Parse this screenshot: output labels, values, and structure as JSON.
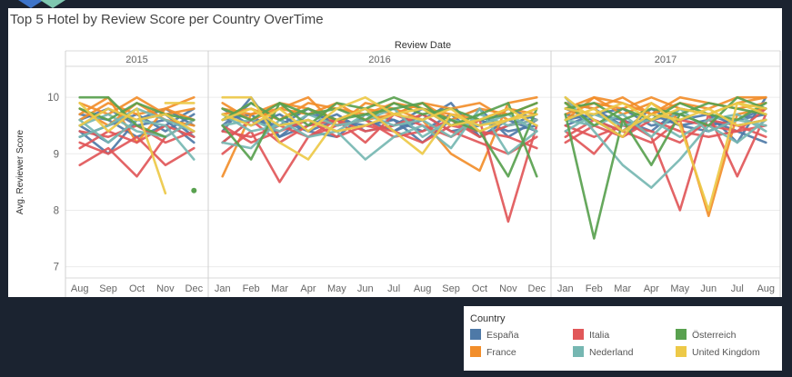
{
  "chart_data": {
    "type": "line",
    "title": "Top 5 Hotel by Review Score per Country OverTime",
    "header_label": "Review Date",
    "ylabel": "Avg. Reviewer Score",
    "ylim": [
      6.8,
      10.55
    ],
    "yticks": [
      7,
      8,
      9,
      10
    ],
    "grid": true,
    "legend_position": "bottom-right",
    "panels": [
      {
        "year": "2015",
        "months": [
          "Aug",
          "Sep",
          "Oct",
          "Nov",
          "Dec"
        ]
      },
      {
        "year": "2016",
        "months": [
          "Jan",
          "Feb",
          "Mar",
          "Apr",
          "May",
          "Jun",
          "Jul",
          "Aug",
          "Sep",
          "Oct",
          "Nov",
          "Dec"
        ]
      },
      {
        "year": "2017",
        "months": [
          "Jan",
          "Feb",
          "Mar",
          "Apr",
          "May",
          "Jun",
          "Jul",
          "Aug"
        ]
      }
    ],
    "legend_title": "Country",
    "series": [
      {
        "name": "España",
        "color": "#4e79a7",
        "lines": [
          {
            "p2015": [
              9.4,
              9.0,
              9.6,
              9.7,
              9.3
            ],
            "p2016": [
              9.4,
              10.0,
              9.3,
              9.7,
              9.6,
              9.8,
              9.4,
              9.6,
              9.9,
              9.3,
              9.5,
              9.7
            ],
            "p2017": [
              9.8,
              9.6,
              9.3,
              9.7,
              9.5,
              9.4,
              9.6,
              9.8
            ]
          },
          {
            "p2015": [
              9.6,
              9.8,
              9.5,
              9.6,
              9.2
            ],
            "p2016": [
              9.8,
              9.5,
              9.7,
              9.4,
              9.6,
              9.5,
              9.6,
              9.2,
              9.6,
              9.8,
              9.3,
              9.6
            ],
            "p2017": [
              9.6,
              9.7,
              9.8,
              9.5,
              9.6,
              9.7,
              9.2,
              10.0
            ]
          },
          {
            "p2015": [
              9.3,
              9.5,
              9.7,
              9.4,
              9.7
            ],
            "p2016": [
              9.6,
              9.7,
              9.3,
              9.5,
              9.7,
              9.4,
              9.5,
              9.8,
              9.5,
              9.6,
              9.4,
              9.5
            ],
            "p2017": [
              9.7,
              9.6,
              9.4,
              9.8,
              9.5,
              9.6,
              9.4,
              9.2
            ]
          },
          {
            "p2015": [
              9.7,
              9.6,
              9.3,
              9.5,
              9.8
            ],
            "p2016": [
              9.5,
              9.9,
              9.6,
              9.4,
              9.3,
              9.7,
              9.6,
              9.4,
              9.7,
              9.3,
              9.6,
              9.4
            ],
            "p2017": [
              9.9,
              9.8,
              9.5,
              9.6,
              9.7,
              9.5,
              9.6,
              9.7
            ]
          },
          {
            "p2015": [
              9.5,
              9.2,
              9.6,
              9.8,
              9.5
            ],
            "p2016": [
              9.2,
              9.6,
              9.5,
              9.8,
              9.5,
              9.6,
              9.4,
              9.7,
              9.4,
              9.5,
              9.8,
              9.6
            ],
            "p2017": [
              9.5,
              9.7,
              9.6,
              9.4,
              9.8,
              9.7,
              9.5,
              9.6
            ]
          }
        ]
      },
      {
        "name": "France",
        "color": "#f28e2b",
        "lines": [
          {
            "p2015": [
              9.7,
              10.0,
              9.2,
              9.8,
              10.0
            ],
            "p2016": [
              8.6,
              9.7,
              9.8,
              10.0,
              9.5,
              9.9,
              9.8,
              9.6,
              9.0,
              8.7,
              9.9,
              10.0
            ],
            "p2017": [
              9.6,
              10.0,
              9.7,
              9.9,
              9.6,
              7.9,
              9.7,
              9.8
            ]
          },
          {
            "p2015": [
              9.8,
              9.5,
              9.9,
              9.6,
              9.5
            ],
            "p2016": [
              9.9,
              9.6,
              9.8,
              9.7,
              9.9,
              9.6,
              9.7,
              9.9,
              9.6,
              9.8,
              9.7,
              9.9
            ],
            "p2017": [
              9.9,
              9.8,
              10.0,
              9.7,
              9.9,
              9.8,
              10.0,
              10.0
            ]
          },
          {
            "p2015": [
              9.6,
              9.9,
              9.7,
              9.8,
              9.6
            ],
            "p2016": [
              9.7,
              9.8,
              9.6,
              9.9,
              9.8,
              9.7,
              9.9,
              9.8,
              9.7,
              9.6,
              9.8,
              9.7
            ],
            "p2017": [
              9.8,
              10.0,
              9.9,
              9.7,
              10.0,
              9.9,
              9.8,
              9.9
            ]
          },
          {
            "p2015": [
              9.9,
              9.7,
              10.0,
              9.7,
              9.8
            ],
            "p2016": [
              9.8,
              9.7,
              9.9,
              9.8,
              9.6,
              9.8,
              9.7,
              9.9,
              9.8,
              9.9,
              9.6,
              9.8
            ],
            "p2017": [
              9.7,
              9.9,
              9.8,
              10.0,
              9.8,
              9.7,
              9.9,
              10.0
            ]
          }
        ]
      },
      {
        "name": "Italia",
        "color": "#e15759",
        "lines": [
          {
            "p2015": [
              8.8,
              9.1,
              8.6,
              9.3,
              9.6
            ],
            "p2016": [
              9.0,
              9.4,
              8.5,
              9.3,
              9.6,
              9.2,
              9.7,
              9.5,
              9.3,
              9.6,
              7.8,
              9.5
            ],
            "p2017": [
              9.4,
              9.0,
              9.6,
              9.3,
              8.0,
              9.7,
              8.6,
              9.7
            ]
          },
          {
            "p2015": [
              9.2,
              9.0,
              9.3,
              8.8,
              9.1
            ],
            "p2016": [
              9.2,
              9.6,
              9.2,
              9.5,
              9.6,
              9.4,
              9.5,
              9.7,
              9.4,
              9.2,
              9.0,
              9.3
            ],
            "p2017": [
              9.2,
              9.5,
              9.3,
              9.6,
              9.4,
              9.3,
              9.4,
              9.5
            ]
          },
          {
            "p2015": [
              9.4,
              9.3,
              9.5,
              9.2,
              9.4
            ],
            "p2016": [
              9.4,
              9.3,
              9.5,
              9.3,
              9.5,
              9.6,
              9.3,
              9.4,
              9.6,
              9.3,
              9.5,
              9.6
            ],
            "p2017": [
              9.3,
              9.6,
              9.4,
              9.2,
              9.6,
              9.5,
              9.4,
              9.8
            ]
          },
          {
            "p2015": [
              9.1,
              9.4,
              9.2,
              9.5,
              9.3
            ],
            "p2016": [
              9.5,
              9.2,
              9.4,
              9.6,
              9.3,
              9.5,
              9.4,
              9.2,
              9.5,
              9.4,
              9.3,
              9.1
            ],
            "p2017": [
              9.5,
              9.3,
              9.5,
              9.4,
              9.2,
              9.6,
              9.5,
              9.3
            ]
          }
        ]
      },
      {
        "name": "Nederland",
        "color": "#76b7b2",
        "lines": [
          {
            "p2015": [
              9.6,
              9.2,
              9.6,
              9.5,
              8.9
            ],
            "p2016": [
              9.2,
              9.1,
              9.6,
              9.3,
              9.4,
              8.9,
              9.3,
              9.5,
              9.1,
              9.8,
              9.0,
              9.4
            ],
            "p2017": [
              10.0,
              9.4,
              8.8,
              8.4,
              8.9,
              9.5,
              9.2,
              9.6
            ]
          },
          {
            "p2015": [
              9.5,
              9.7,
              9.4,
              9.3,
              9.6
            ],
            "p2016": [
              9.5,
              9.6,
              9.4,
              9.7,
              9.5,
              9.6,
              9.8,
              9.3,
              9.6,
              9.5,
              9.7,
              9.4
            ],
            "p2017": [
              9.6,
              9.5,
              9.7,
              9.3,
              9.8,
              9.4,
              9.6,
              9.5
            ]
          },
          {
            "p2015": [
              9.3,
              9.5,
              9.8,
              9.6,
              9.4
            ],
            "p2016": [
              9.7,
              9.4,
              9.5,
              9.6,
              9.4,
              9.7,
              9.5,
              9.6,
              9.3,
              9.7,
              9.5,
              9.6
            ],
            "p2017": [
              9.4,
              9.7,
              9.5,
              9.6,
              9.3,
              9.6,
              9.7,
              9.4
            ]
          }
        ]
      },
      {
        "name": "Österreich",
        "color": "#59a14f",
        "lines": [
          {
            "p2015": [
              10.0,
              10.0,
              9.5,
              9.3,
              null
            ],
            "p2016": [
              9.5,
              8.9,
              9.9,
              9.5,
              9.9,
              9.8,
              10.0,
              9.8,
              9.6,
              9.4,
              8.6,
              9.8
            ],
            "p2017": [
              9.7,
              7.5,
              9.6,
              8.8,
              9.7,
              9.5,
              10.0,
              9.8
            ]
          },
          {
            "p2015": [
              null,
              null,
              null,
              null,
              8.35
            ],
            "p2016": [
              9.6,
              9.9,
              9.6,
              9.8,
              9.6,
              9.7,
              9.8,
              9.9,
              9.5,
              9.7,
              9.9,
              8.6
            ],
            "p2017": [
              9.9,
              9.5,
              9.8,
              9.6,
              9.9,
              9.7,
              9.6,
              9.9
            ]
          },
          {
            "p2015": [
              9.8,
              9.6,
              9.9,
              9.7,
              9.6
            ],
            "p2016": [
              9.8,
              9.6,
              9.9,
              9.7,
              9.8,
              9.6,
              9.9,
              9.7,
              9.8,
              9.6,
              9.7,
              9.9
            ],
            "p2017": [
              9.8,
              9.9,
              9.6,
              9.8,
              9.7,
              9.9,
              9.8,
              9.7
            ]
          }
        ]
      },
      {
        "name": "United Kingdom",
        "color": "#edc948",
        "lines": [
          {
            "p2015": [
              9.9,
              9.4,
              9.8,
              8.3,
              null
            ],
            "p2016": [
              10.0,
              10.0,
              9.2,
              8.9,
              9.6,
              9.8,
              9.4,
              9.0,
              9.7,
              9.5,
              9.6,
              9.8
            ],
            "p2017": [
              10.0,
              9.6,
              9.3,
              9.9,
              9.5,
              8.0,
              9.9,
              9.7
            ]
          },
          {
            "p2015": [
              null,
              null,
              null,
              9.9,
              9.9
            ],
            "p2016": [
              9.7,
              9.5,
              9.8,
              9.4,
              9.8,
              10.0,
              9.7,
              9.8,
              9.5,
              9.6,
              9.8,
              9.5
            ],
            "p2017": [
              9.8,
              9.7,
              9.9,
              9.6,
              9.8,
              9.7,
              9.9,
              9.8
            ]
          },
          {
            "p2015": [
              9.5,
              9.8,
              9.6,
              9.7,
              9.4
            ],
            "p2016": [
              9.6,
              9.8,
              9.5,
              9.6,
              9.4,
              9.5,
              9.7,
              9.6,
              9.8,
              9.4,
              9.6,
              9.7
            ],
            "p2017": [
              9.6,
              9.8,
              9.4,
              9.7,
              9.6,
              9.8,
              9.5,
              9.6
            ]
          }
        ]
      }
    ]
  }
}
